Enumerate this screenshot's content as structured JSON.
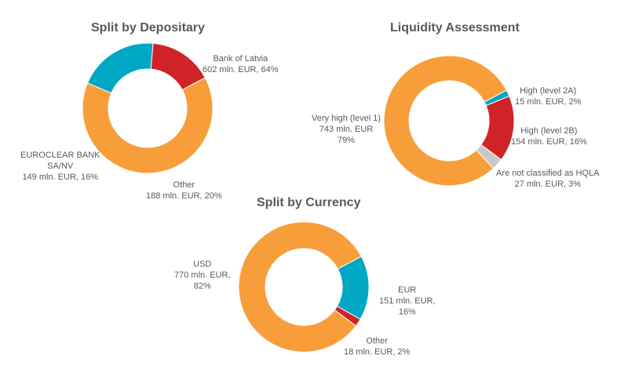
{
  "colors": {
    "orange": "#F79E3B",
    "red": "#D02328",
    "teal": "#00A7C4",
    "gray": "#C8C8C8",
    "text": "#595959"
  },
  "chart_data": [
    {
      "type": "pie",
      "title": "Split by Depositary",
      "slices": [
        {
          "label": "Bank of Latvia",
          "value": 602,
          "percent": 64,
          "text": [
            "Bank of Latvia",
            "602 mln. EUR,  64%"
          ],
          "color": "orange"
        },
        {
          "label": "Other",
          "value": 188,
          "percent": 20,
          "text": [
            "Other",
            "188 mln. EUR, 20%"
          ],
          "color": "teal"
        },
        {
          "label": "EUROCLEAR BANK SA/NV",
          "value": 149,
          "percent": 16,
          "text": [
            "EUROCLEAR BANK",
            "SA/NV",
            "149 mln. EUR, 16%"
          ],
          "color": "red"
        }
      ]
    },
    {
      "type": "pie",
      "title": "Liquidity Assessment",
      "slices": [
        {
          "label": "High (level 2A)",
          "value": 15,
          "percent": 2,
          "text": [
            "High (level 2A)",
            "15 mln. EUR, 2%"
          ],
          "color": "teal"
        },
        {
          "label": "High (level 2B)",
          "value": 154,
          "percent": 16,
          "text": [
            "High (level 2B)",
            "154 mln. EUR,  16%"
          ],
          "color": "red"
        },
        {
          "label": "Are not classified as HQLA",
          "value": 27,
          "percent": 3,
          "text": [
            "Are not classified as HQLA",
            "27 mln. EUR, 3%"
          ],
          "color": "gray"
        },
        {
          "label": "Very high (level 1)",
          "value": 743,
          "percent": 79,
          "text": [
            "Very high (level 1)",
            "743 mln. EUR",
            "79%"
          ],
          "color": "orange"
        }
      ]
    },
    {
      "type": "pie",
      "title": "Split by Currency",
      "slices": [
        {
          "label": "EUR",
          "value": 151,
          "percent": 16,
          "text": [
            "EUR",
            "151 mln. EUR,",
            "16%"
          ],
          "color": "teal"
        },
        {
          "label": "Other",
          "value": 18,
          "percent": 2,
          "text": [
            "Other",
            "18 mln. EUR, 2%"
          ],
          "color": "red"
        },
        {
          "label": "USD",
          "value": 770,
          "percent": 82,
          "text": [
            "USD",
            "770 mln. EUR,",
            "82%"
          ],
          "color": "orange"
        }
      ]
    }
  ]
}
